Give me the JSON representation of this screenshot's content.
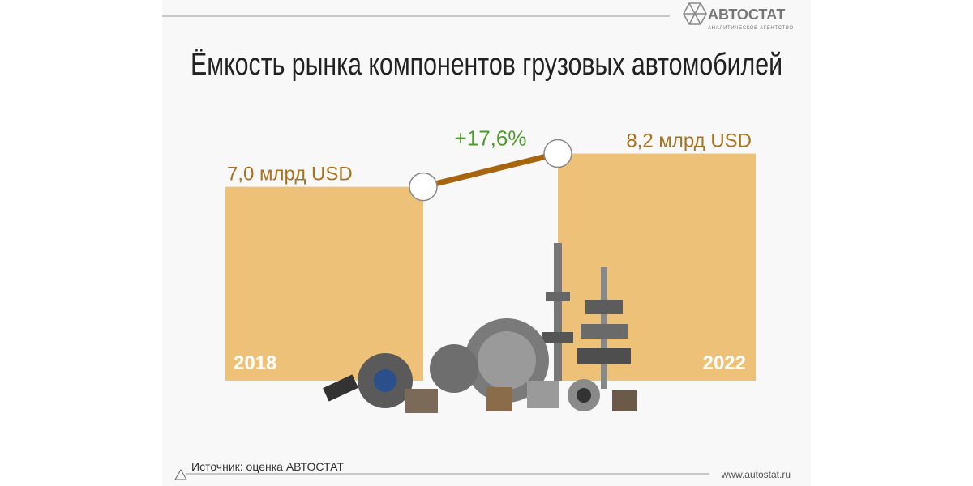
{
  "chart_data": {
    "type": "bar",
    "title": "Ёмкость рынка компонентов грузовых автомобилей",
    "categories": [
      "2018",
      "2022"
    ],
    "values": [
      7.0,
      8.2
    ],
    "value_labels": [
      "7,0 млрд USD",
      "8,2 млрд USD"
    ],
    "color": "#edc278",
    "annotation": "+17,6%"
  },
  "logo": {
    "name": "АВТОСТАТ",
    "tagline": "АНАЛИТИЧЕСКОЕ АГЕНТСТВО"
  },
  "footer": {
    "source": "Источник: оценка АВТОСТАТ",
    "url": "www.autostat.ru"
  }
}
